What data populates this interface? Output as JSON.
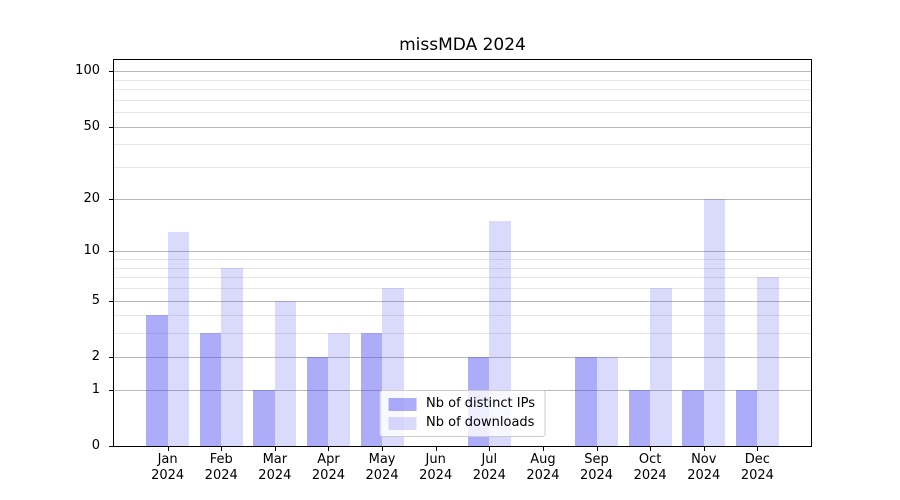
{
  "title": "missMDA 2024",
  "legend": {
    "items": [
      {
        "label": "Nb of distinct IPs",
        "color": "rgba(70,70,240,0.45)"
      },
      {
        "label": "Nb of downloads",
        "color": "rgba(70,70,240,0.2)"
      }
    ]
  },
  "chart_data": {
    "type": "bar",
    "title": "missMDA 2024",
    "categories": [
      "Jan 2024",
      "Feb 2024",
      "Mar 2024",
      "Apr 2024",
      "May 2024",
      "Jun 2024",
      "Jul 2024",
      "Aug 2024",
      "Sep 2024",
      "Oct 2024",
      "Nov 2024",
      "Dec 2024"
    ],
    "series": [
      {
        "name": "Nb of distinct IPs",
        "values": [
          4,
          3,
          1,
          2,
          3,
          0,
          2,
          0,
          2,
          1,
          1,
          1
        ],
        "color": "rgba(70,70,240,0.45)"
      },
      {
        "name": "Nb of downloads",
        "values": [
          13,
          8,
          5,
          3,
          6,
          0,
          15,
          0,
          2,
          6,
          20,
          7
        ],
        "color": "rgba(70,70,240,0.2)"
      }
    ],
    "xlabel": "",
    "ylabel": "",
    "y_scale": "log1p",
    "y_major_ticks": [
      0,
      1,
      2,
      5,
      10,
      20,
      50,
      100
    ],
    "y_minor_ticks": [
      3,
      4,
      6,
      7,
      8,
      9,
      30,
      40,
      60,
      70,
      80,
      90
    ],
    "y_axis_top": 115,
    "ylim": [
      0,
      115
    ],
    "grid": true,
    "legend_position": "lower center"
  },
  "colors": {
    "major_grid": "#b8b8b8",
    "minor_grid": "#e7e7e7",
    "spine": "#000000",
    "bar_distinct_ips": "rgba(70,70,240,0.45)",
    "bar_downloads": "rgba(70,70,240,0.2)"
  }
}
